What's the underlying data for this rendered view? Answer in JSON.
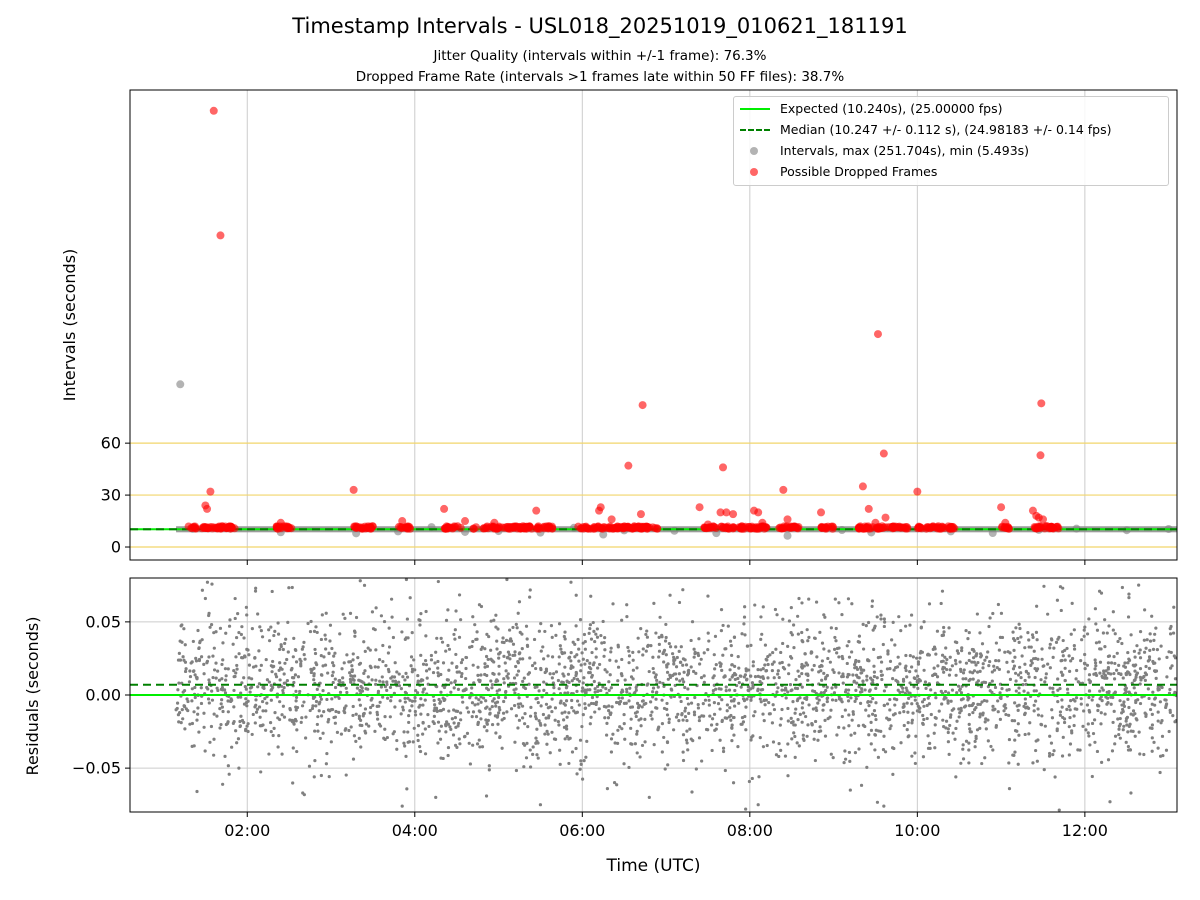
{
  "figure": {
    "title": "Timestamp Intervals - USL018_20251019_010621_181191",
    "subtitle_1": "Jitter Quality (intervals within +/-1 frame): 76.3%",
    "subtitle_2": "Dropped Frame Rate (intervals >1 frames late within 50 FF files): 38.7%",
    "xlabel": "Time (UTC)"
  },
  "legend": {
    "expected": "Expected (10.240s), (25.00000 fps)",
    "median": "Median (10.247 +/- 0.112 s), (24.98183 +/- 0.14 fps)",
    "intervals": "Intervals, max (251.704s), min (5.493s)",
    "dropped": "Possible Dropped Frames"
  },
  "colors": {
    "expected": "#00ee00",
    "median": "#008000",
    "intervals": "#808080",
    "dropped": "#ff0000",
    "reference": "#f2d56b",
    "grid": "#cccccc"
  },
  "chart_data": [
    {
      "type": "scatter",
      "panel": "intervals",
      "ylabel": "Intervals (seconds)",
      "y_ticks": [
        "0",
        "30",
        "60"
      ],
      "y_tick_values": [
        0,
        30,
        60
      ],
      "x_ticks": [
        "02:00",
        "04:00",
        "06:00",
        "08:00",
        "10:00",
        "12:00"
      ],
      "x_tick_values": [
        2,
        4,
        6,
        8,
        10,
        12
      ],
      "xlim": [
        0.6,
        13.1
      ],
      "ylim": [
        -7.5,
        264
      ],
      "grid": "x",
      "reference_lines": [
        0,
        30,
        60
      ],
      "expected": 10.24,
      "median": 10.247,
      "series": [
        {
          "name": "Intervals",
          "points": [
            [
              1.2,
              94
            ],
            [
              1.35,
              10.5
            ],
            [
              1.8,
              10.8
            ],
            [
              2.4,
              8.5
            ],
            [
              3.3,
              7.9
            ],
            [
              3.8,
              9.0
            ],
            [
              4.2,
              11.5
            ],
            [
              4.6,
              8.7
            ],
            [
              5.0,
              9.2
            ],
            [
              5.5,
              8.3
            ],
            [
              5.9,
              11.1
            ],
            [
              6.25,
              7.2
            ],
            [
              6.5,
              9.6
            ],
            [
              7.1,
              9.4
            ],
            [
              7.6,
              8.0
            ],
            [
              8.2,
              11.0
            ],
            [
              8.45,
              6.5
            ],
            [
              9.1,
              9.8
            ],
            [
              9.45,
              8.4
            ],
            [
              9.8,
              11.4
            ],
            [
              10.4,
              9.0
            ],
            [
              10.9,
              8.1
            ],
            [
              11.45,
              9.9
            ],
            [
              11.9,
              10.6
            ],
            [
              12.5,
              9.7
            ],
            [
              13.0,
              10.4
            ]
          ]
        },
        {
          "name": "Possible Dropped Frames",
          "points": [
            [
              1.6,
              252
            ],
            [
              1.68,
              180
            ],
            [
              1.5,
              24
            ],
            [
              1.52,
              22
            ],
            [
              1.56,
              32
            ],
            [
              1.7,
              12
            ],
            [
              1.75,
              11
            ],
            [
              2.4,
              14
            ],
            [
              2.45,
              12
            ],
            [
              3.27,
              33
            ],
            [
              3.3,
              12
            ],
            [
              3.85,
              15
            ],
            [
              4.35,
              22
            ],
            [
              4.6,
              15
            ],
            [
              4.95,
              14
            ],
            [
              5.45,
              21
            ],
            [
              5.6,
              12
            ],
            [
              6.2,
              21
            ],
            [
              6.22,
              23
            ],
            [
              6.35,
              16
            ],
            [
              6.55,
              47
            ],
            [
              6.7,
              19
            ],
            [
              6.72,
              82
            ],
            [
              7.4,
              23
            ],
            [
              7.5,
              13
            ],
            [
              7.65,
              20
            ],
            [
              7.68,
              46
            ],
            [
              7.72,
              20
            ],
            [
              7.8,
              19
            ],
            [
              8.05,
              21
            ],
            [
              8.1,
              20
            ],
            [
              8.15,
              14
            ],
            [
              8.4,
              33
            ],
            [
              8.45,
              16
            ],
            [
              8.85,
              20
            ],
            [
              9.35,
              35
            ],
            [
              9.42,
              22
            ],
            [
              9.5,
              14
            ],
            [
              9.53,
              123
            ],
            [
              9.58,
              12
            ],
            [
              9.6,
              54
            ],
            [
              9.62,
              17
            ],
            [
              10.0,
              32
            ],
            [
              10.25,
              12
            ],
            [
              11.0,
              23
            ],
            [
              11.05,
              14
            ],
            [
              11.38,
              21
            ],
            [
              11.42,
              18
            ],
            [
              11.45,
              17
            ],
            [
              11.47,
              53
            ],
            [
              11.48,
              83
            ],
            [
              11.5,
              16
            ],
            [
              11.55,
              12
            ],
            [
              11.6,
              11
            ]
          ]
        }
      ]
    },
    {
      "type": "scatter",
      "panel": "residuals",
      "ylabel": "Residuals (seconds)",
      "y_ticks": [
        "0.05",
        "0.00",
        "−0.05"
      ],
      "y_tick_values": [
        0.05,
        0.0,
        -0.05
      ],
      "x_ticks": [
        "02:00",
        "04:00",
        "06:00",
        "08:00",
        "10:00",
        "12:00"
      ],
      "x_tick_values": [
        2,
        4,
        6,
        8,
        10,
        12
      ],
      "xlim": [
        0.6,
        13.1
      ],
      "ylim": [
        -0.08,
        0.08
      ],
      "grid": "both",
      "expected": 0.0,
      "median": 0.007,
      "series": [
        {
          "name": "Residuals",
          "x_range": [
            1.15,
            13.1
          ],
          "count": 3200,
          "spread_sd": 0.025,
          "outliers": [
            [
              1.4,
              -0.066
            ],
            [
              1.5,
              0.066
            ],
            [
              1.9,
              -0.05
            ],
            [
              2.1,
              0.073
            ],
            [
              2.8,
              -0.056
            ],
            [
              3.4,
              0.075
            ],
            [
              3.85,
              -0.076
            ],
            [
              3.9,
              0.079
            ],
            [
              4.25,
              -0.07
            ],
            [
              5.1,
              0.079
            ],
            [
              5.5,
              -0.075
            ],
            [
              6.8,
              -0.07
            ],
            [
              7.2,
              0.072
            ],
            [
              7.95,
              -0.078
            ],
            [
              8.1,
              -0.075
            ],
            [
              9.2,
              -0.065
            ],
            [
              9.6,
              -0.076
            ],
            [
              10.3,
              0.071
            ],
            [
              11.1,
              -0.064
            ],
            [
              12.3,
              -0.073
            ],
            [
              12.55,
              -0.067
            ]
          ]
        }
      ]
    }
  ]
}
